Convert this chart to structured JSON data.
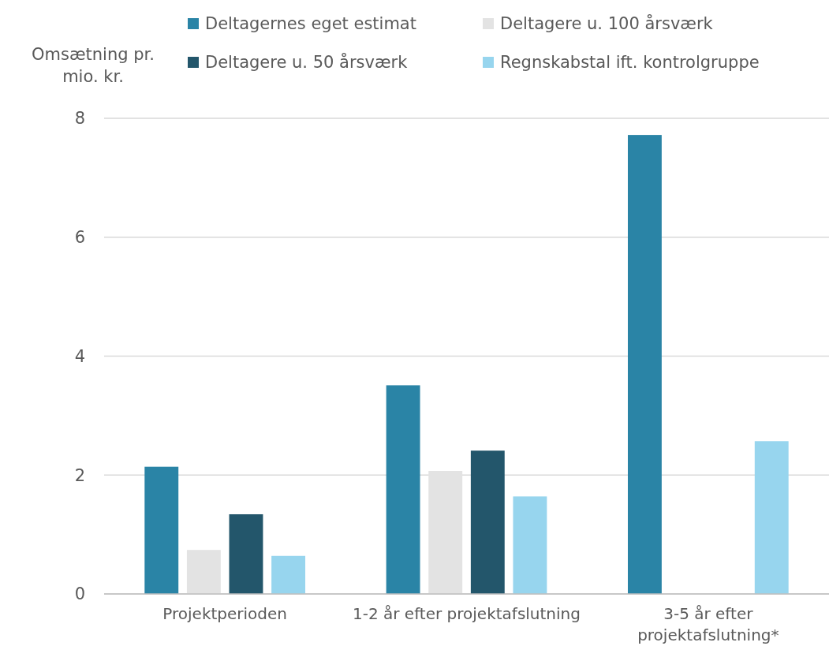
{
  "chart_data": {
    "type": "bar",
    "ylabel": "Omsætning pr. mio. kr.",
    "categories": [
      "Projektperioden",
      "1-2 år efter projektafslutning",
      "3-5 år efter projektafslutning*"
    ],
    "series": [
      {
        "name": "Deltagernes eget estimat",
        "color": "#2a84a6",
        "values": [
          2.14,
          3.51,
          7.72
        ]
      },
      {
        "name": "Deltagere u. 100 årsværk",
        "color": "#e3e3e3",
        "values": [
          0.74,
          2.07,
          null
        ]
      },
      {
        "name": "Deltagere u. 50 årsværk",
        "color": "#23566b",
        "values": [
          1.34,
          2.41,
          null
        ]
      },
      {
        "name": "Regnskabstal ift. kontrolgruppe",
        "color": "#97d5ee",
        "values": [
          0.64,
          1.64,
          2.57
        ]
      }
    ],
    "ylim": [
      0,
      8
    ],
    "yticks": [
      0,
      2,
      4,
      6,
      8
    ],
    "grid": "y",
    "legend": "top"
  }
}
